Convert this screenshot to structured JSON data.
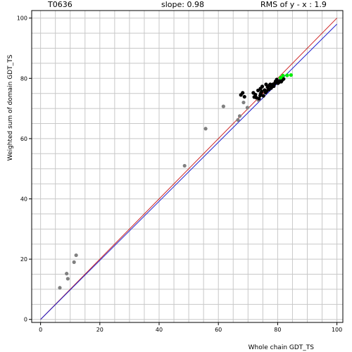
{
  "header": {
    "target": "T0636",
    "slope": "slope: 0.98",
    "rms": "RMS of  y - x : 1.9"
  },
  "chart_data": {
    "type": "scatter",
    "title": "",
    "xlabel": "Whole chain GDT_TS",
    "ylabel": "Weighted sum of domain GDT_TS",
    "xlim": [
      0,
      100
    ],
    "ylim": [
      0,
      100
    ],
    "xticks": [
      "0",
      "20",
      "40",
      "60",
      "80",
      "100"
    ],
    "yticks": [
      "0",
      "20",
      "40",
      "60",
      "80",
      "100"
    ],
    "grid": true,
    "lines": [
      {
        "name": "y = x",
        "color": "#cc2222",
        "x": [
          0,
          100
        ],
        "y": [
          0,
          100
        ]
      },
      {
        "name": "fit",
        "color": "#2222cc",
        "x": [
          0,
          100
        ],
        "y": [
          0,
          98
        ]
      }
    ],
    "series": [
      {
        "color": "#808080",
        "points": [
          [
            6.5,
            10.5
          ],
          [
            8.8,
            15.2
          ],
          [
            9.2,
            13.5
          ],
          [
            11.3,
            19.0
          ],
          [
            12.0,
            21.3
          ],
          [
            48.6,
            51.0
          ],
          [
            55.7,
            63.3
          ],
          [
            61.7,
            70.7
          ],
          [
            66.6,
            66.2
          ],
          [
            67.2,
            67.5
          ],
          [
            68.5,
            72.0
          ],
          [
            69.8,
            70.3
          ],
          [
            73.5,
            72.8
          ]
        ]
      },
      {
        "color": "#000000",
        "points": [
          [
            67.6,
            74.5
          ],
          [
            68.2,
            75.2
          ],
          [
            68.8,
            73.9
          ],
          [
            71.8,
            75.2
          ],
          [
            72.1,
            73.8
          ],
          [
            72.8,
            73.6
          ],
          [
            72.5,
            74.6
          ],
          [
            73.4,
            76.0
          ],
          [
            73.7,
            73.3
          ],
          [
            74.1,
            74.3
          ],
          [
            74.3,
            75.0
          ],
          [
            74.6,
            75.6
          ],
          [
            74.2,
            76.6
          ],
          [
            74.8,
            77.3
          ],
          [
            75.2,
            74.2
          ],
          [
            75.6,
            76.1
          ],
          [
            75.9,
            75.3
          ],
          [
            76.3,
            75.8
          ],
          [
            76.6,
            77.1
          ],
          [
            76.1,
            78.0
          ],
          [
            77.0,
            76.3
          ],
          [
            77.3,
            77.7
          ],
          [
            77.5,
            78.0
          ],
          [
            77.8,
            76.8
          ],
          [
            78.1,
            77.5
          ],
          [
            78.4,
            78.0
          ],
          [
            78.7,
            77.4
          ],
          [
            79.0,
            78.3
          ],
          [
            79.3,
            79.0
          ],
          [
            79.7,
            79.6
          ],
          [
            80.1,
            78.4
          ],
          [
            80.4,
            78.7
          ],
          [
            80.8,
            79.2
          ],
          [
            81.2,
            78.9
          ],
          [
            81.5,
            79.4
          ],
          [
            82.0,
            79.8
          ]
        ]
      },
      {
        "color": "#00ee00",
        "points": [
          [
            81.0,
            80.2
          ],
          [
            81.8,
            80.9
          ],
          [
            83.2,
            81.0
          ],
          [
            84.5,
            81.1
          ]
        ]
      }
    ]
  }
}
